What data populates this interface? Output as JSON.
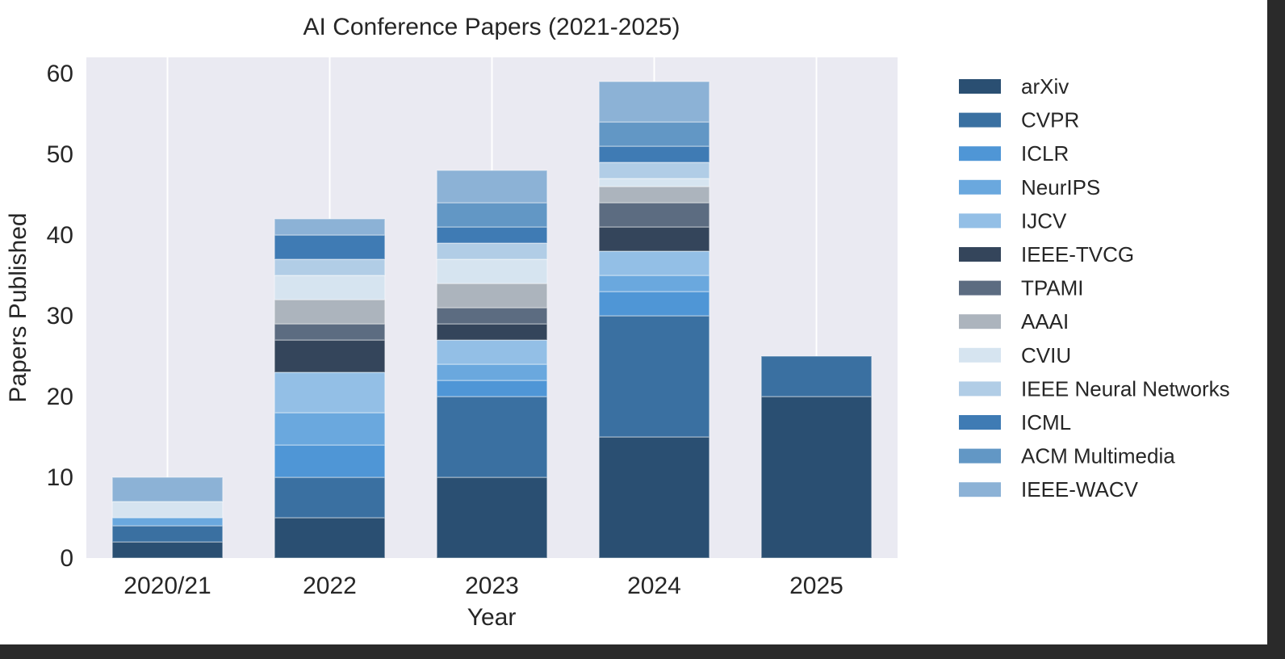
{
  "chart_data": {
    "type": "bar",
    "stacked": true,
    "title": "AI Conference Papers (2021-2025)",
    "xlabel": "Year",
    "ylabel": "Papers Published",
    "ylim": [
      0,
      62
    ],
    "yticks": [
      0,
      10,
      20,
      30,
      40,
      50,
      60
    ],
    "grid": true,
    "legend_position": "right",
    "categories": [
      "2020/21",
      "2022",
      "2023",
      "2024",
      "2025"
    ],
    "series": [
      {
        "name": "arXiv",
        "color": "#2a4f72",
        "values": [
          2,
          5,
          10,
          15,
          20
        ]
      },
      {
        "name": "CVPR",
        "color": "#3a70a1",
        "values": [
          2,
          5,
          10,
          15,
          5
        ]
      },
      {
        "name": "ICLR",
        "color": "#4f96d6",
        "values": [
          0,
          4,
          2,
          3,
          0
        ]
      },
      {
        "name": "NeurIPS",
        "color": "#6aa8de",
        "values": [
          1,
          4,
          2,
          2,
          0
        ]
      },
      {
        "name": "IJCV",
        "color": "#93bfe6",
        "values": [
          0,
          5,
          3,
          3,
          0
        ]
      },
      {
        "name": "IEEE-TVCG",
        "color": "#34455b",
        "values": [
          0,
          4,
          2,
          3,
          0
        ]
      },
      {
        "name": "TPAMI",
        "color": "#5c6c81",
        "values": [
          0,
          2,
          2,
          3,
          0
        ]
      },
      {
        "name": "AAAI",
        "color": "#acb4bd",
        "values": [
          0,
          3,
          3,
          2,
          0
        ]
      },
      {
        "name": "CVIU",
        "color": "#d6e4f0",
        "values": [
          2,
          3,
          3,
          1,
          0
        ]
      },
      {
        "name": "IEEE Neural Networks",
        "color": "#b1cde6",
        "values": [
          0,
          2,
          2,
          2,
          0
        ]
      },
      {
        "name": "ICML",
        "color": "#3f7bb4",
        "values": [
          0,
          3,
          2,
          2,
          0
        ]
      },
      {
        "name": "ACM Multimedia",
        "color": "#6297c5",
        "values": [
          0,
          0,
          3,
          3,
          0
        ]
      },
      {
        "name": "IEEE-WACV",
        "color": "#8cb2d6",
        "values": [
          3,
          2,
          4,
          5,
          0
        ]
      }
    ]
  }
}
